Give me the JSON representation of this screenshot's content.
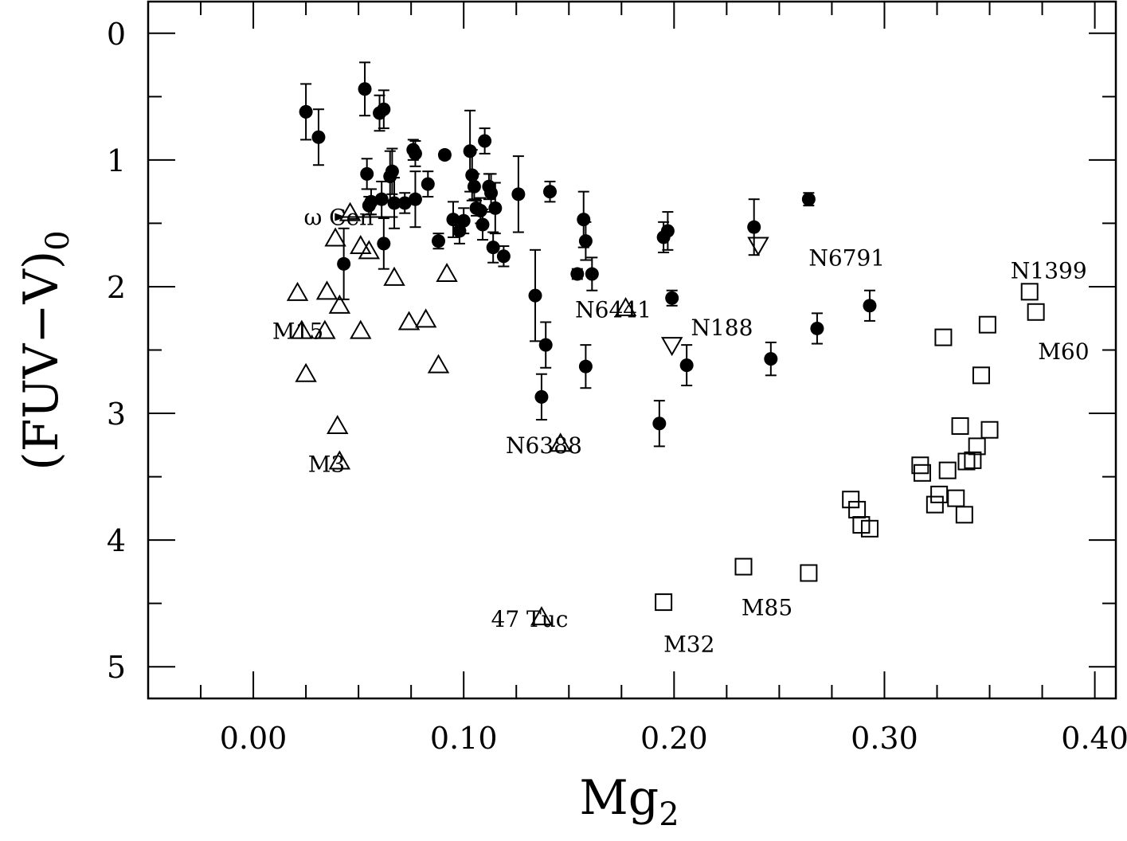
{
  "chart_data": {
    "type": "scatter",
    "xlabel": "Mg",
    "xlabel_sub": "2",
    "ylabel": "(FUV−V)",
    "ylabel_sub": "0",
    "xlim": [
      -0.05,
      0.41
    ],
    "ylim": [
      5.25,
      -0.25
    ],
    "y_inverted": true,
    "x_ticks": [
      0.0,
      0.1,
      0.2,
      0.3,
      0.4
    ],
    "x_tick_labels": [
      "0.00",
      "0.10",
      "0.20",
      "0.30",
      "0.40"
    ],
    "y_ticks": [
      0,
      1,
      2,
      3,
      4,
      5
    ],
    "y_tick_labels": [
      "0",
      "1",
      "2",
      "3",
      "4",
      "5"
    ],
    "grid": false,
    "series": [
      {
        "marker": "filled-circle",
        "points": [
          [
            0.025,
            0.62,
            0.22
          ],
          [
            0.031,
            0.82,
            0.22
          ],
          [
            0.043,
            1.82,
            0.28
          ],
          [
            0.053,
            0.44,
            0.21
          ],
          [
            0.054,
            1.11,
            0.12
          ],
          [
            0.055,
            1.36,
            0.07
          ],
          [
            0.056,
            1.33,
            0.1
          ],
          [
            0.06,
            0.63,
            0.14
          ],
          [
            0.061,
            1.31,
            0.14
          ],
          [
            0.062,
            0.6,
            0.15
          ],
          [
            0.062,
            1.66,
            0.2
          ],
          [
            0.065,
            1.13,
            0.2
          ],
          [
            0.066,
            1.09,
            0.18
          ],
          [
            0.067,
            1.34,
            0.2
          ],
          [
            0.072,
            1.34,
            0.08
          ],
          [
            0.076,
            0.92,
            0.08
          ],
          [
            0.077,
            0.95,
            0.1
          ],
          [
            0.077,
            1.31,
            0.22
          ],
          [
            0.083,
            1.19,
            0.1
          ],
          [
            0.088,
            1.64,
            0.06
          ],
          [
            0.091,
            0.96,
            0.03
          ],
          [
            0.095,
            1.47,
            0.14
          ],
          [
            0.098,
            1.56,
            0.1
          ],
          [
            0.1,
            1.48,
            0.1
          ],
          [
            0.103,
            0.93,
            0.32
          ],
          [
            0.104,
            1.12,
            0.2
          ],
          [
            0.105,
            1.21,
            0.1
          ],
          [
            0.106,
            1.38,
            0.06
          ],
          [
            0.108,
            1.4,
            0.1
          ],
          [
            0.109,
            1.51,
            0.12
          ],
          [
            0.11,
            0.85,
            0.1
          ],
          [
            0.112,
            1.21,
            0.1
          ],
          [
            0.113,
            1.26,
            0.15
          ],
          [
            0.114,
            1.69,
            0.12
          ],
          [
            0.115,
            1.38,
            0.2
          ],
          [
            0.119,
            1.76,
            0.08
          ],
          [
            0.126,
            1.27,
            0.3
          ],
          [
            0.134,
            2.07,
            0.36
          ],
          [
            0.137,
            2.87,
            0.18
          ],
          [
            0.139,
            2.46,
            0.18
          ],
          [
            0.141,
            1.25,
            0.08
          ],
          [
            0.154,
            1.9,
            0.04
          ],
          [
            0.157,
            1.47,
            0.22
          ],
          [
            0.158,
            1.64,
            0.15
          ],
          [
            0.158,
            2.63,
            0.17
          ],
          [
            0.161,
            1.9,
            0.13
          ],
          [
            0.193,
            3.08,
            0.18
          ],
          [
            0.195,
            1.61,
            0.12
          ],
          [
            0.197,
            1.56,
            0.15
          ],
          [
            0.199,
            2.09,
            0.06
          ],
          [
            0.206,
            2.62,
            0.16
          ],
          [
            0.238,
            1.53,
            0.22
          ],
          [
            0.246,
            2.57,
            0.13
          ],
          [
            0.264,
            1.31,
            0.05
          ],
          [
            0.268,
            2.33,
            0.12
          ],
          [
            0.293,
            2.15,
            0.12
          ]
        ]
      },
      {
        "marker": "open-triangle-up",
        "points": [
          [
            0.021,
            2.05
          ],
          [
            0.023,
            2.35
          ],
          [
            0.025,
            2.69
          ],
          [
            0.034,
            2.35
          ],
          [
            0.035,
            2.04
          ],
          [
            0.039,
            1.62
          ],
          [
            0.04,
            3.1
          ],
          [
            0.041,
            2.15
          ],
          [
            0.041,
            3.38
          ],
          [
            0.046,
            1.42
          ],
          [
            0.051,
            2.35
          ],
          [
            0.051,
            1.68
          ],
          [
            0.055,
            1.72
          ],
          [
            0.067,
            1.93
          ],
          [
            0.074,
            2.28
          ],
          [
            0.082,
            2.26
          ],
          [
            0.088,
            2.62
          ],
          [
            0.092,
            1.9
          ],
          [
            0.137,
            4.61
          ],
          [
            0.146,
            3.24
          ],
          [
            0.177,
            2.17
          ]
        ]
      },
      {
        "marker": "open-triangle-down",
        "points": [
          [
            0.199,
            2.46
          ],
          [
            0.24,
            1.67
          ]
        ]
      },
      {
        "marker": "open-square",
        "points": [
          [
            0.195,
            4.49
          ],
          [
            0.233,
            4.21
          ],
          [
            0.264,
            4.26
          ],
          [
            0.284,
            3.68
          ],
          [
            0.287,
            3.76
          ],
          [
            0.289,
            3.88
          ],
          [
            0.293,
            3.91
          ],
          [
            0.317,
            3.41
          ],
          [
            0.318,
            3.47
          ],
          [
            0.324,
            3.72
          ],
          [
            0.326,
            3.64
          ],
          [
            0.328,
            2.4
          ],
          [
            0.33,
            3.45
          ],
          [
            0.334,
            3.67
          ],
          [
            0.336,
            3.1
          ],
          [
            0.338,
            3.8
          ],
          [
            0.339,
            3.38
          ],
          [
            0.342,
            3.37
          ],
          [
            0.344,
            3.26
          ],
          [
            0.346,
            2.7
          ],
          [
            0.349,
            2.3
          ],
          [
            0.35,
            3.13
          ],
          [
            0.369,
            2.04
          ],
          [
            0.372,
            2.2
          ]
        ]
      }
    ],
    "annotations": [
      {
        "text": "ω Cen",
        "x": 0.024,
        "y": 1.45,
        "arrow_to": [
          0.044,
          1.45
        ]
      },
      {
        "text": "M15",
        "x": 0.009,
        "y": 2.35
      },
      {
        "text": "M3",
        "x": 0.026,
        "y": 3.4
      },
      {
        "text": "N6441",
        "x": 0.153,
        "y": 2.18
      },
      {
        "text": "N6388",
        "x": 0.12,
        "y": 3.25
      },
      {
        "text": "47 Tuc",
        "x": 0.113,
        "y": 4.62
      },
      {
        "text": "N188",
        "x": 0.208,
        "y": 2.32
      },
      {
        "text": "N6791",
        "x": 0.264,
        "y": 1.77
      },
      {
        "text": "M32",
        "x": 0.195,
        "y": 4.82
      },
      {
        "text": "M85",
        "x": 0.232,
        "y": 4.53
      },
      {
        "text": "N1399",
        "x": 0.36,
        "y": 1.87
      },
      {
        "text": "M60",
        "x": 0.373,
        "y": 2.51
      }
    ]
  }
}
